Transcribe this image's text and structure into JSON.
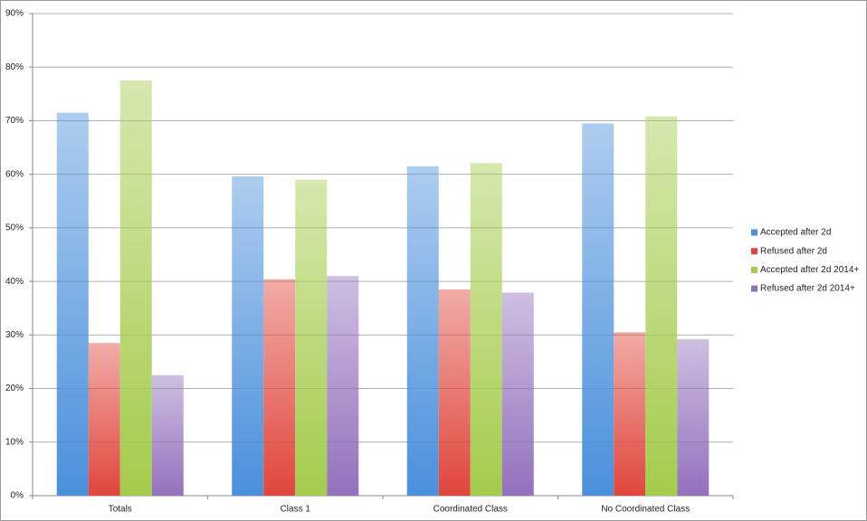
{
  "chart_data": {
    "type": "bar",
    "categories": [
      "Totals",
      "Class 1",
      "Coordinated Class",
      "No Coordinated Class"
    ],
    "series": [
      {
        "name": "Accepted after 2d",
        "color": "#4a90dc",
        "values": [
          71.5,
          59.6,
          61.5,
          69.5
        ]
      },
      {
        "name": "Refused after 2d",
        "color": "#e0463c",
        "values": [
          28.5,
          40.4,
          38.5,
          30.5
        ]
      },
      {
        "name": "Accepted after 2d 2014+",
        "color": "#a4cc4c",
        "values": [
          77.5,
          59,
          62.1,
          70.8
        ]
      },
      {
        "name": "Refused after 2d 2014+",
        "color": "#9371bd",
        "values": [
          22.5,
          41,
          37.9,
          29.2
        ]
      }
    ],
    "ylim": [
      0,
      90
    ],
    "yticks": [
      {
        "value": 0,
        "label": "0%"
      },
      {
        "value": 10,
        "label": "10%"
      },
      {
        "value": 20,
        "label": "20%"
      },
      {
        "value": 30,
        "label": "30%"
      },
      {
        "value": 40,
        "label": "40%"
      },
      {
        "value": 50,
        "label": "50%"
      },
      {
        "value": 60,
        "label": "60%"
      },
      {
        "value": 70,
        "label": "70%"
      },
      {
        "value": 80,
        "label": "80%"
      },
      {
        "value": 90,
        "label": "90%"
      }
    ],
    "grid": true,
    "legend": "right"
  }
}
